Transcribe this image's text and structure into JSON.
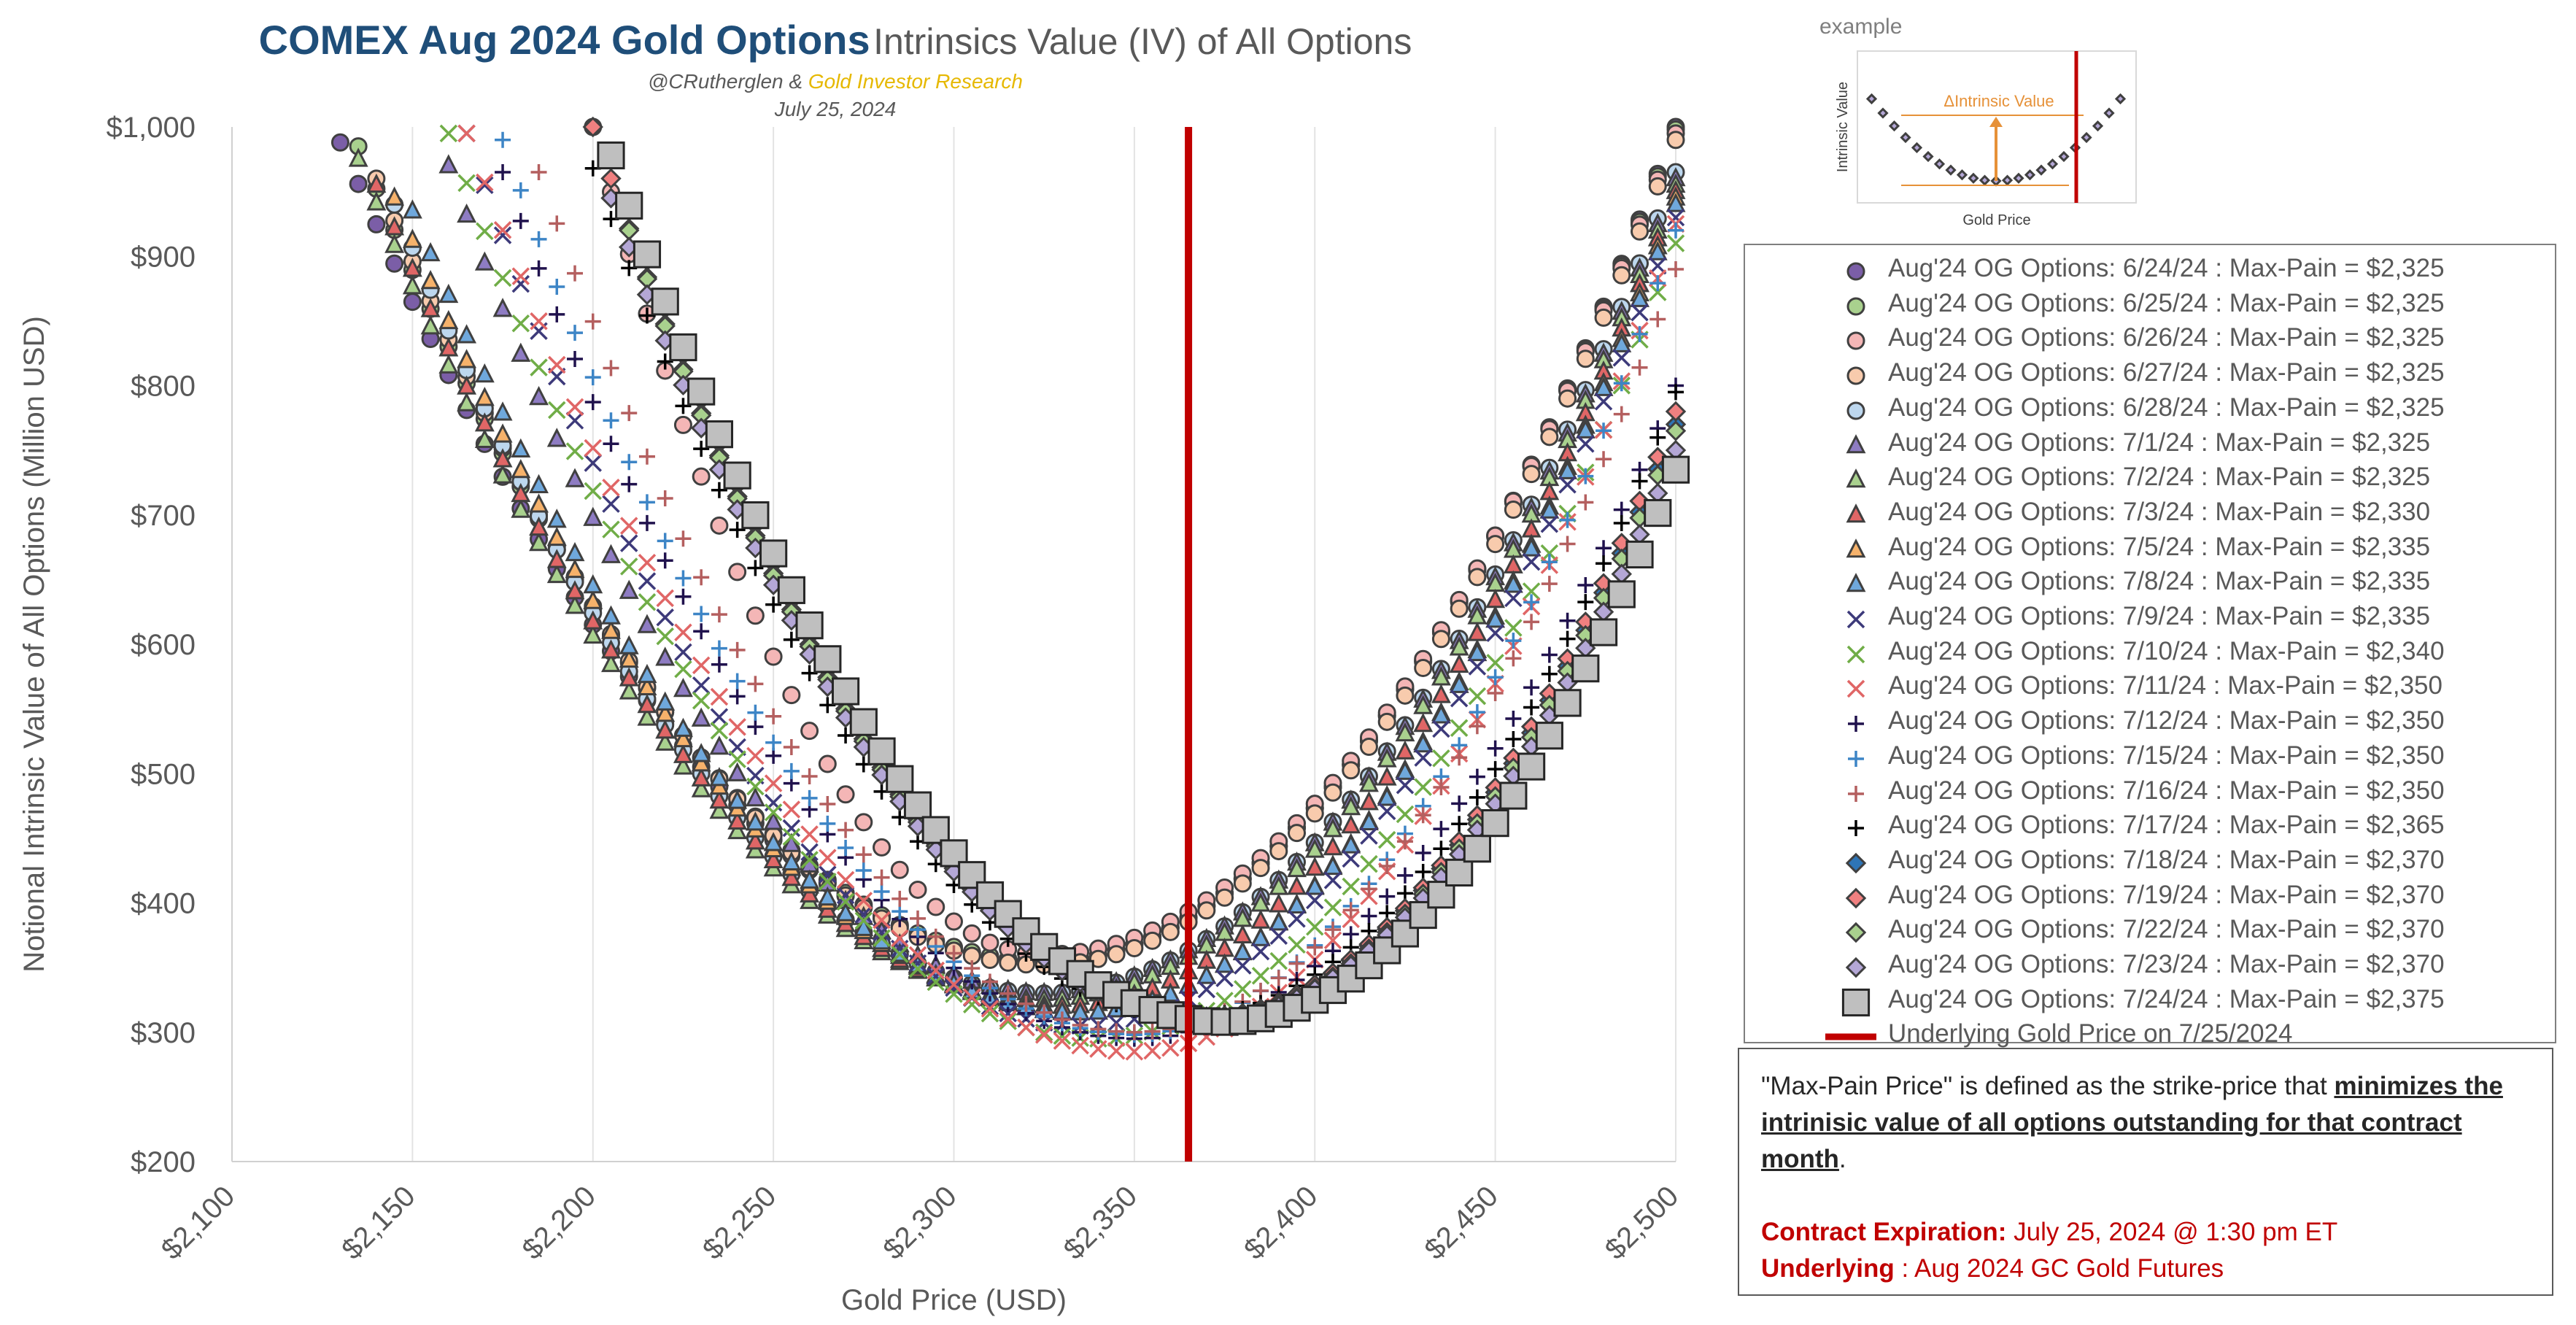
{
  "header": {
    "title_bold": "COMEX  Aug 2024 Gold Options",
    "title_rest": "Intrinsics Value (IV) of All Options",
    "byline_prefix": "@CRutherglen &",
    "byline_brand": "Gold Investor Research",
    "date": "July 25, 2024"
  },
  "inset": {
    "label": "example",
    "ylabel": "Intrinsic Value",
    "xlabel": "Gold Price",
    "annotation": "ΔIntrinsic Value"
  },
  "note": {
    "line1_plain": "\"Max-Pain Price\" is defined as the strike-price that",
    "line1_emph": "minimizes the intrinisic value of all options outstanding for that contract month",
    "line1_end": ".",
    "expiry_label": "Contract Expiration:",
    "expiry_value": "July 25, 2024 @ 1:30 pm ET",
    "underlying_label": "Underlying",
    "underlying_value": ": Aug 2024 GC Gold Futures"
  },
  "chart_data": {
    "type": "scatter",
    "xlabel": "Gold Price (USD)",
    "ylabel": "Notional Intrinsic Value of All Options (Million USD)",
    "xlim": [
      2100,
      2500
    ],
    "ylim": [
      200,
      1000
    ],
    "x_ticks": [
      "$2,100",
      "$2,150",
      "$2,200",
      "$2,250",
      "$2,300",
      "$2,350",
      "$2,400",
      "$2,450",
      "$2,500"
    ],
    "y_ticks": [
      "$200",
      "$300",
      "$400",
      "$500",
      "$600",
      "$700",
      "$800",
      "$900",
      "$1,000"
    ],
    "grid": "vertical",
    "legend_position": "right",
    "underlying_price": 2365,
    "underlying_label": "Underlying Gold Price on 7/25/2024",
    "underlying_color": "#c00000",
    "series": [
      {
        "name": "Aug'24 OG Options: 6/24/24 : Max-Pain = $2,325",
        "marker": "circle",
        "color": "#7b5ea7",
        "max_pain": 2325,
        "min_value": 355,
        "x_from": 2130,
        "x_to": 2500,
        "left_value_at_from": 988,
        "right_value_at_to": 1000
      },
      {
        "name": "Aug'24 OG Options: 6/25/24 : Max-Pain = $2,325",
        "marker": "circle",
        "color": "#a9d18e",
        "max_pain": 2325,
        "min_value": 355,
        "x_from": 2135,
        "x_to": 2500,
        "left_value_at_from": 985,
        "right_value_at_to": 998
      },
      {
        "name": "Aug'24 OG Options: 6/26/24 : Max-Pain = $2,325",
        "marker": "circle",
        "color": "#f4b6b6",
        "max_pain": 2325,
        "min_value": 360,
        "x_from": 2200,
        "x_to": 2500,
        "left_value_at_from": 1000,
        "right_value_at_to": 995
      },
      {
        "name": "Aug'24 OG Options: 6/27/24 : Max-Pain = $2,325",
        "marker": "circle",
        "color": "#f8cbad",
        "max_pain": 2325,
        "min_value": 352,
        "x_from": 2140,
        "x_to": 2500,
        "left_value_at_from": 960,
        "right_value_at_to": 990
      },
      {
        "name": "Aug'24 OG Options: 6/28/24 : Max-Pain = $2,325",
        "marker": "circle",
        "color": "#bdd7ee",
        "max_pain": 2325,
        "min_value": 330,
        "x_from": 2145,
        "x_to": 2500,
        "left_value_at_from": 940,
        "right_value_at_to": 965
      },
      {
        "name": "Aug'24 OG Options: 7/1/24 : Max-Pain = $2,325",
        "marker": "triangle",
        "color": "#8e7cc3",
        "max_pain": 2325,
        "min_value": 330,
        "x_from": 2160,
        "x_to": 2500,
        "left_value_at_from": 970,
        "right_value_at_to": 960
      },
      {
        "name": "Aug'24 OG Options: 7/2/24 : Max-Pain = $2,325",
        "marker": "triangle",
        "color": "#a9d18e",
        "max_pain": 2325,
        "min_value": 325,
        "x_from": 2135,
        "x_to": 2500,
        "left_value_at_from": 975,
        "right_value_at_to": 955
      },
      {
        "name": "Aug'24 OG Options: 7/3/24 : Max-Pain = $2,330",
        "marker": "triangle",
        "color": "#e06666",
        "max_pain": 2330,
        "min_value": 320,
        "x_from": 2140,
        "x_to": 2500,
        "left_value_at_from": 955,
        "right_value_at_to": 950
      },
      {
        "name": "Aug'24 OG Options: 7/5/24 : Max-Pain = $2,335",
        "marker": "triangle",
        "color": "#f6b26b",
        "max_pain": 2335,
        "min_value": 315,
        "x_from": 2145,
        "x_to": 2500,
        "left_value_at_from": 945,
        "right_value_at_to": 945
      },
      {
        "name": "Aug'24 OG Options: 7/8/24 : Max-Pain = $2,335",
        "marker": "triangle",
        "color": "#6fa8dc",
        "max_pain": 2335,
        "min_value": 315,
        "x_from": 2150,
        "x_to": 2500,
        "left_value_at_from": 935,
        "right_value_at_to": 940
      },
      {
        "name": "Aug'24 OG Options: 7/9/24 : Max-Pain = $2,335",
        "marker": "x",
        "color": "#3d3a7a",
        "max_pain": 2335,
        "min_value": 305,
        "x_from": 2165,
        "x_to": 2500,
        "left_value_at_from": 995,
        "right_value_at_to": 930
      },
      {
        "name": "Aug'24 OG Options: 7/10/24 : Max-Pain = $2,340",
        "marker": "x",
        "color": "#70ad47",
        "max_pain": 2340,
        "min_value": 295,
        "x_from": 2160,
        "x_to": 2500,
        "left_value_at_from": 995,
        "right_value_at_to": 910
      },
      {
        "name": "Aug'24 OG Options: 7/11/24 : Max-Pain = $2,350",
        "marker": "x",
        "color": "#e06666",
        "max_pain": 2350,
        "min_value": 285,
        "x_from": 2165,
        "x_to": 2500,
        "left_value_at_from": 995,
        "right_value_at_to": 925
      },
      {
        "name": "Aug'24 OG Options: 7/12/24 : Max-Pain = $2,350",
        "marker": "plus",
        "color": "#20124d",
        "max_pain": 2350,
        "min_value": 295,
        "x_from": 2175,
        "x_to": 2500,
        "left_value_at_from": 965,
        "right_value_at_to": 800
      },
      {
        "name": "Aug'24 OG Options: 7/15/24 : Max-Pain = $2,350",
        "marker": "plus",
        "color": "#3d85c6",
        "max_pain": 2350,
        "min_value": 298,
        "x_from": 2175,
        "x_to": 2500,
        "left_value_at_from": 990,
        "right_value_at_to": 920
      },
      {
        "name": "Aug'24 OG Options: 7/16/24 : Max-Pain = $2,350",
        "marker": "plus",
        "color": "#b45f5f",
        "max_pain": 2350,
        "min_value": 300,
        "x_from": 2185,
        "x_to": 2500,
        "left_value_at_from": 965,
        "right_value_at_to": 890
      },
      {
        "name": "Aug'24 OG Options: 7/17/24 : Max-Pain = $2,365",
        "marker": "plus",
        "color": "#000000",
        "max_pain": 2365,
        "min_value": 312,
        "x_from": 2200,
        "x_to": 2500,
        "left_value_at_from": 968,
        "right_value_at_to": 795
      },
      {
        "name": "Aug'24 OG Options: 7/18/24 : Max-Pain = $2,370",
        "marker": "diamond",
        "color": "#2e75b6",
        "max_pain": 2370,
        "min_value": 312,
        "x_from": 2210,
        "x_to": 2500,
        "left_value_at_from": 935,
        "right_value_at_to": 770
      },
      {
        "name": "Aug'24 OG Options: 7/19/24 : Max-Pain = $2,370",
        "marker": "diamond",
        "color": "#f08080",
        "max_pain": 2370,
        "min_value": 312,
        "x_from": 2200,
        "x_to": 2500,
        "left_value_at_from": 1000,
        "right_value_at_to": 780
      },
      {
        "name": "Aug'24 OG Options: 7/22/24 : Max-Pain = $2,370",
        "marker": "diamond",
        "color": "#a9d18e",
        "max_pain": 2370,
        "min_value": 310,
        "x_from": 2210,
        "x_to": 2500,
        "left_value_at_from": 920,
        "right_value_at_to": 765
      },
      {
        "name": "Aug'24 OG Options: 7/23/24 : Max-Pain = $2,370",
        "marker": "diamond",
        "color": "#b4a7d6",
        "max_pain": 2370,
        "min_value": 310,
        "x_from": 2205,
        "x_to": 2500,
        "left_value_at_from": 945,
        "right_value_at_to": 750
      },
      {
        "name": "Aug'24 OG Options: 7/24/24 : Max-Pain = $2,375",
        "marker": "square",
        "color": "#bfbfbf",
        "max_pain": 2375,
        "min_value": 308,
        "x_from": 2205,
        "x_to": 2500,
        "left_value_at_from": 978,
        "right_value_at_to": 735
      }
    ]
  }
}
